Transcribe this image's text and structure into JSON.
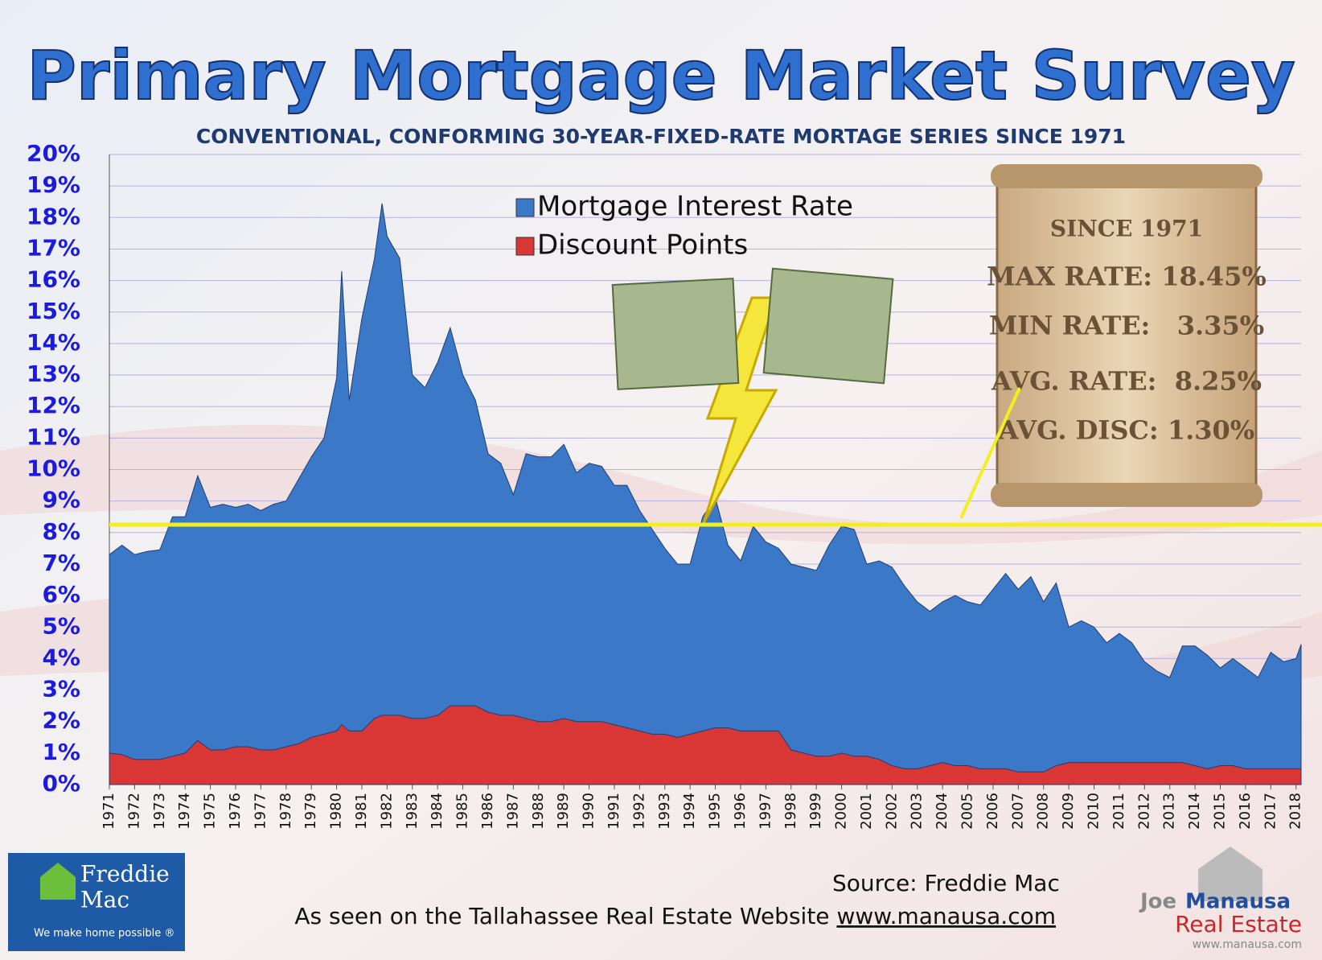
{
  "chart_data": {
    "type": "area",
    "title": "Primary Mortgage Market Survey",
    "subtitle": "CONVENTIONAL, CONFORMING 30-YEAR-FIXED-RATE MORTAGE SERIES SINCE 1971",
    "x": [
      1971,
      1971.5,
      1972,
      1972.5,
      1973,
      1973.5,
      1974,
      1974.5,
      1975,
      1975.5,
      1976,
      1976.5,
      1977,
      1977.5,
      1978,
      1978.5,
      1979,
      1979.5,
      1980,
      1980.2,
      1980.5,
      1981,
      1981.5,
      1981.8,
      1982,
      1982.5,
      1983,
      1983.5,
      1984,
      1984.5,
      1985,
      1985.5,
      1986,
      1986.5,
      1987,
      1987.5,
      1988,
      1988.5,
      1989,
      1989.5,
      1990,
      1990.5,
      1991,
      1991.5,
      1992,
      1992.5,
      1993,
      1993.5,
      1994,
      1994.5,
      1995,
      1995.5,
      1996,
      1996.5,
      1997,
      1997.5,
      1998,
      1998.5,
      1999,
      1999.5,
      2000,
      2000.5,
      2001,
      2001.5,
      2002,
      2002.5,
      2003,
      2003.5,
      2004,
      2004.5,
      2005,
      2005.5,
      2006,
      2006.5,
      2007,
      2007.5,
      2008,
      2008.5,
      2009,
      2009.5,
      2010,
      2010.5,
      2011,
      2011.5,
      2012,
      2012.5,
      2013,
      2013.5,
      2014,
      2014.5,
      2015,
      2015.5,
      2016,
      2016.5,
      2017,
      2017.5,
      2018,
      2018.2
    ],
    "series": [
      {
        "name": "Mortgage Interest Rate",
        "color": "#3b78c8",
        "values": [
          7.3,
          7.6,
          7.3,
          7.4,
          7.45,
          8.5,
          8.5,
          9.8,
          8.8,
          8.9,
          8.8,
          8.9,
          8.7,
          8.9,
          9.0,
          9.7,
          10.4,
          11.0,
          12.9,
          16.3,
          12.2,
          14.8,
          16.7,
          18.45,
          17.4,
          16.7,
          13.0,
          12.6,
          13.4,
          14.5,
          13.0,
          12.2,
          10.5,
          10.2,
          9.2,
          10.5,
          10.4,
          10.4,
          10.8,
          9.9,
          10.2,
          10.1,
          9.5,
          9.5,
          8.7,
          8.1,
          7.5,
          7.0,
          7.0,
          8.5,
          9.1,
          7.6,
          7.1,
          8.2,
          7.7,
          7.5,
          7.0,
          6.9,
          6.8,
          7.6,
          8.2,
          8.1,
          7.0,
          7.1,
          6.9,
          6.3,
          5.8,
          5.5,
          5.8,
          6.0,
          5.8,
          5.7,
          6.2,
          6.7,
          6.2,
          6.6,
          5.8,
          6.4,
          5.0,
          5.2,
          5.0,
          4.5,
          4.8,
          4.5,
          3.9,
          3.6,
          3.4,
          4.4,
          4.4,
          4.1,
          3.7,
          4.0,
          3.7,
          3.4,
          4.2,
          3.9,
          4.0,
          4.45
        ]
      },
      {
        "name": "Discount Points",
        "color": "#d93636",
        "values": [
          1.0,
          0.95,
          0.8,
          0.8,
          0.8,
          0.9,
          1.0,
          1.4,
          1.1,
          1.1,
          1.2,
          1.2,
          1.1,
          1.1,
          1.2,
          1.3,
          1.5,
          1.6,
          1.7,
          1.9,
          1.7,
          1.7,
          2.1,
          2.2,
          2.2,
          2.2,
          2.1,
          2.1,
          2.2,
          2.5,
          2.5,
          2.5,
          2.3,
          2.2,
          2.2,
          2.1,
          2.0,
          2.0,
          2.1,
          2.0,
          2.0,
          2.0,
          1.9,
          1.8,
          1.7,
          1.6,
          1.6,
          1.5,
          1.6,
          1.7,
          1.8,
          1.8,
          1.7,
          1.7,
          1.7,
          1.7,
          1.1,
          1.0,
          0.9,
          0.9,
          1.0,
          0.9,
          0.9,
          0.8,
          0.6,
          0.5,
          0.5,
          0.6,
          0.7,
          0.6,
          0.6,
          0.5,
          0.5,
          0.5,
          0.4,
          0.4,
          0.4,
          0.6,
          0.7,
          0.7,
          0.7,
          0.7,
          0.7,
          0.7,
          0.7,
          0.7,
          0.7,
          0.7,
          0.6,
          0.5,
          0.6,
          0.6,
          0.5,
          0.5,
          0.5,
          0.5,
          0.5,
          0.5
        ]
      }
    ],
    "xlim": [
      1971,
      2018.2
    ],
    "xticks": [
      1971,
      1972,
      1973,
      1974,
      1975,
      1976,
      1977,
      1978,
      1979,
      1980,
      1981,
      1982,
      1983,
      1984,
      1985,
      1986,
      1987,
      1988,
      1989,
      1990,
      1991,
      1992,
      1993,
      1994,
      1995,
      1996,
      1997,
      1998,
      1999,
      2000,
      2001,
      2002,
      2003,
      2004,
      2005,
      2006,
      2007,
      2008,
      2009,
      2010,
      2011,
      2012,
      2013,
      2014,
      2015,
      2016,
      2017,
      2018
    ],
    "ylim": [
      0,
      20
    ],
    "yticks": [
      {
        "value": 0,
        "label": "0%"
      },
      {
        "value": 1,
        "label": "1%"
      },
      {
        "value": 2,
        "label": "2%"
      },
      {
        "value": 3,
        "label": "3%"
      },
      {
        "value": 4,
        "label": "4%"
      },
      {
        "value": 5,
        "label": "5%"
      },
      {
        "value": 6,
        "label": "6%"
      },
      {
        "value": 7,
        "label": "7%"
      },
      {
        "value": 8,
        "label": "8%"
      },
      {
        "value": 9,
        "label": "9%"
      },
      {
        "value": 10,
        "label": "10%"
      },
      {
        "value": 11,
        "label": "11%"
      },
      {
        "value": 12,
        "label": "12%"
      },
      {
        "value": 13,
        "label": "13%"
      },
      {
        "value": 14,
        "label": "14%"
      },
      {
        "value": 15,
        "label": "15%"
      },
      {
        "value": 16,
        "label": "16%"
      },
      {
        "value": 17,
        "label": "17%"
      },
      {
        "value": 18,
        "label": "18%"
      },
      {
        "value": 19,
        "label": "19%"
      },
      {
        "value": 20,
        "label": "20%"
      }
    ],
    "grid": true,
    "legend": "top-left",
    "reference_line": {
      "value": 8.25,
      "color": "#f2ee20"
    },
    "annotations": [
      "SINCE 1971",
      "MAX RATE: 18.45%",
      "MIN RATE:   3.35%",
      "AVG. RATE:  8.25%",
      "AVG. DISC: 1.30%"
    ],
    "source": "Source: Freddie Mac",
    "credit": "As seen on the Tallahassee Real Estate Website",
    "credit_url": "www.manausa.com",
    "logo_left": [
      "Freddie",
      "Mac",
      "We make home possible ®"
    ],
    "logo_right": [
      "Joe",
      "Manausa",
      "Real Estate",
      "www.manausa.com"
    ]
  }
}
